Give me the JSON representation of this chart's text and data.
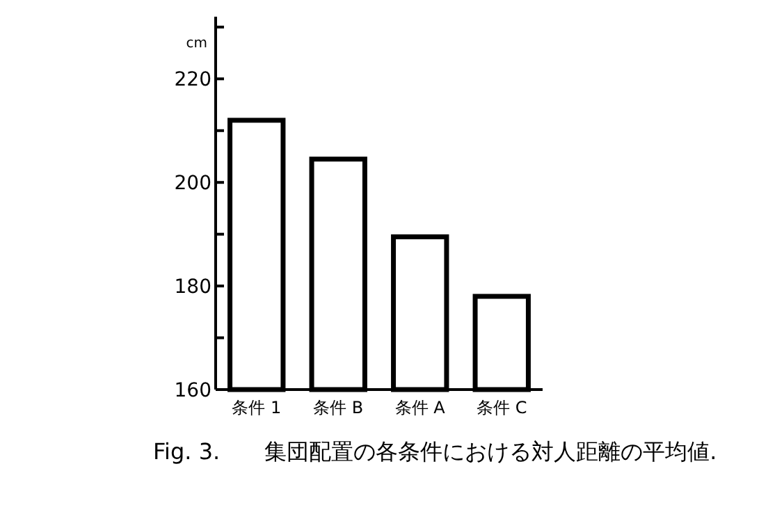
{
  "chart_data": {
    "type": "bar",
    "ylabel": "cm",
    "categories": [
      "条件 1",
      "条件 B",
      "条件 A",
      "条件 C"
    ],
    "values": [
      212,
      204.5,
      189.5,
      178
    ],
    "ylim": [
      160,
      232
    ],
    "yticks": [
      160,
      {
        "value": 170,
        "label": null
      },
      180,
      {
        "value": 190,
        "label": null
      },
      200,
      {
        "value": 210,
        "label": null
      },
      220,
      {
        "value": 230,
        "label": null
      }
    ],
    "grid": false,
    "annotations": [
      "Fig. 3.　　集団配置の各条件における対人距離の平均値."
    ]
  }
}
